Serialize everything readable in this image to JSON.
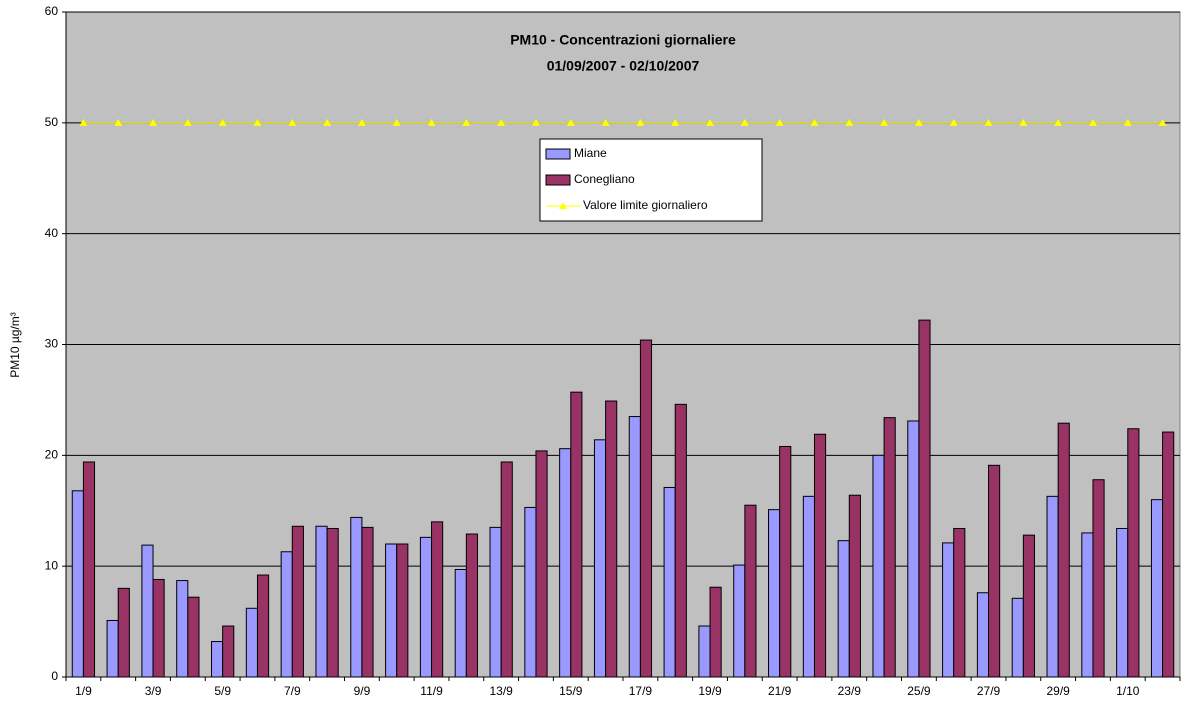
{
  "chart_data": {
    "type": "bar",
    "title": "PM10 - Concentrazioni giornaliere",
    "subtitle": "01/09/2007 - 02/10/2007",
    "y_label": "PM10 µg/m³",
    "categories": [
      "1/9",
      null,
      "3/9",
      null,
      "5/9",
      null,
      "7/9",
      null,
      "9/9",
      null,
      "11/9",
      null,
      "13/9",
      null,
      "15/9",
      null,
      "17/9",
      null,
      "19/9",
      null,
      "21/9",
      null,
      "23/9",
      null,
      "25/9",
      null,
      "27/9",
      null,
      "29/9",
      null,
      "1/10",
      null
    ],
    "series": [
      {
        "name": "Miane",
        "color": "#9999ff",
        "values": [
          16.8,
          5.1,
          11.9,
          8.7,
          3.2,
          6.2,
          11.3,
          13.6,
          14.4,
          12.0,
          12.6,
          9.7,
          13.5,
          15.3,
          20.6,
          21.4,
          23.5,
          17.1,
          4.6,
          10.1,
          15.1,
          16.3,
          12.3,
          20.0,
          23.1,
          12.1,
          7.6,
          7.1,
          16.3,
          13.0,
          13.4,
          16.0
        ]
      },
      {
        "name": "Conegliano",
        "color": "#993366",
        "values": [
          19.4,
          8.0,
          8.8,
          7.2,
          4.6,
          9.2,
          13.6,
          13.4,
          13.5,
          12.0,
          14.0,
          12.9,
          19.4,
          20.4,
          25.7,
          24.9,
          30.4,
          24.6,
          8.1,
          15.5,
          20.8,
          21.9,
          16.4,
          23.4,
          32.2,
          13.4,
          19.1,
          12.8,
          22.9,
          17.8,
          22.4,
          22.1
        ]
      },
      {
        "name": "Valore limite giornaliero",
        "type": "line",
        "color": "#ffff00",
        "values": [
          50,
          50,
          50,
          50,
          50,
          50,
          50,
          50,
          50,
          50,
          50,
          50,
          50,
          50,
          50,
          50,
          50,
          50,
          50,
          50,
          50,
          50,
          50,
          50,
          50,
          50,
          50,
          50,
          50,
          50,
          50,
          50
        ]
      }
    ],
    "ylim": [
      0,
      60
    ],
    "yticks": [
      0,
      10,
      20,
      30,
      40,
      50,
      60
    ],
    "grid": true
  }
}
